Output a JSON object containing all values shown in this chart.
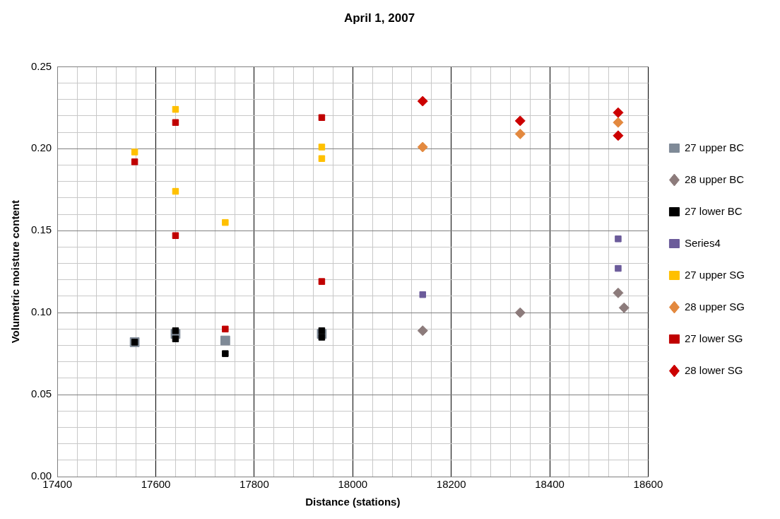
{
  "chart_data": {
    "type": "scatter",
    "title": "April 1, 2007",
    "xlabel": "Distance (stations)",
    "ylabel": "Volumetric moisture content",
    "xlim": [
      17400,
      18600
    ],
    "xticks": [
      17400,
      {
        "value": 17440,
        "label": null
      },
      {
        "value": 17480,
        "label": null
      },
      {
        "value": 17520,
        "label": null
      },
      {
        "value": 17560,
        "label": null
      },
      17600,
      {
        "value": 17640,
        "label": null
      },
      {
        "value": 17680,
        "label": null
      },
      {
        "value": 17720,
        "label": null
      },
      {
        "value": 17760,
        "label": null
      },
      17800,
      {
        "value": 17840,
        "label": null
      },
      {
        "value": 17880,
        "label": null
      },
      {
        "value": 17920,
        "label": null
      },
      {
        "value": 17960,
        "label": null
      },
      18000,
      {
        "value": 18040,
        "label": null
      },
      {
        "value": 18080,
        "label": null
      },
      {
        "value": 18120,
        "label": null
      },
      {
        "value": 18160,
        "label": null
      },
      18200,
      {
        "value": 18240,
        "label": null
      },
      {
        "value": 18280,
        "label": null
      },
      {
        "value": 18320,
        "label": null
      },
      {
        "value": 18360,
        "label": null
      },
      18400,
      {
        "value": 18440,
        "label": null
      },
      {
        "value": 18480,
        "label": null
      },
      {
        "value": 18520,
        "label": null
      },
      {
        "value": 18560,
        "label": null
      },
      18600
    ],
    "ylim": [
      0,
      0.25
    ],
    "yticks": [
      {
        "value": 0,
        "label": "0.00"
      },
      {
        "value": 0.01,
        "label": null
      },
      {
        "value": 0.02,
        "label": null
      },
      {
        "value": 0.03,
        "label": null
      },
      {
        "value": 0.04,
        "label": null
      },
      {
        "value": 0.05,
        "label": "0.05"
      },
      {
        "value": 0.06,
        "label": null
      },
      {
        "value": 0.07,
        "label": null
      },
      {
        "value": 0.08,
        "label": null
      },
      {
        "value": 0.09,
        "label": null
      },
      {
        "value": 0.1,
        "label": "0.10"
      },
      {
        "value": 0.11,
        "label": null
      },
      {
        "value": 0.12,
        "label": null
      },
      {
        "value": 0.13,
        "label": null
      },
      {
        "value": 0.14,
        "label": null
      },
      {
        "value": 0.15,
        "label": "0.15"
      },
      {
        "value": 0.16,
        "label": null
      },
      {
        "value": 0.17,
        "label": null
      },
      {
        "value": 0.18,
        "label": null
      },
      {
        "value": 0.19,
        "label": null
      },
      {
        "value": 0.2,
        "label": "0.20"
      },
      {
        "value": 0.21,
        "label": null
      },
      {
        "value": 0.22,
        "label": null
      },
      {
        "value": 0.23,
        "label": null
      },
      {
        "value": 0.24,
        "label": null
      },
      {
        "value": 0.25,
        "label": "0.25"
      }
    ],
    "grid": true,
    "legend": "right",
    "series": [
      {
        "name": "27 upper BC",
        "color": "#7f8a97",
        "marker": "square",
        "x": [
          17557,
          17640,
          17741,
          17937
        ],
        "values": [
          0.082,
          0.087,
          0.083,
          0.087
        ]
      },
      {
        "name": "28 upper BC",
        "color": "#8c7b7b",
        "marker": "diamond",
        "x": [
          18142,
          18340,
          18539,
          18551
        ],
        "values": [
          0.089,
          0.1,
          0.112,
          0.103
        ]
      },
      {
        "name": "27 lower BC",
        "color": "#000000",
        "marker": "square",
        "x": [
          17557,
          17640,
          17640,
          17741,
          17937,
          17937
        ],
        "values": [
          0.082,
          0.089,
          0.084,
          0.075,
          0.089,
          0.085
        ]
      },
      {
        "name": "Series4",
        "color": "#6b5b9a",
        "marker": "square",
        "x": [
          18142,
          18539,
          18539
        ],
        "values": [
          0.111,
          0.145,
          0.127
        ]
      },
      {
        "name": "27 upper SG",
        "color": "#ffc000",
        "marker": "square",
        "x": [
          17557,
          17640,
          17640,
          17741,
          17937,
          17937
        ],
        "values": [
          0.198,
          0.224,
          0.174,
          0.155,
          0.201,
          0.194
        ]
      },
      {
        "name": "28 upper SG",
        "color": "#e3893f",
        "marker": "diamond",
        "x": [
          18142,
          18340,
          18539
        ],
        "values": [
          0.201,
          0.209,
          0.216
        ]
      },
      {
        "name": "27 lower SG",
        "color": "#c00000",
        "marker": "square",
        "x": [
          17557,
          17640,
          17640,
          17741,
          17937,
          17937
        ],
        "values": [
          0.192,
          0.216,
          0.147,
          0.09,
          0.219,
          0.119
        ]
      },
      {
        "name": "28 lower SG",
        "color": "#cc0000",
        "marker": "diamond",
        "x": [
          18142,
          18340,
          18539,
          18539
        ],
        "values": [
          0.229,
          0.217,
          0.222,
          0.208
        ]
      }
    ]
  }
}
